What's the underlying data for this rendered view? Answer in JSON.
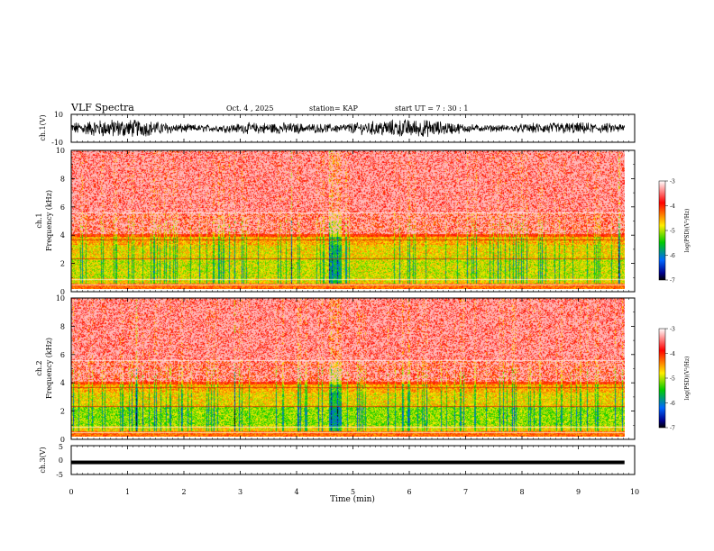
{
  "header": {
    "title": "VLF Spectra",
    "date": "Oct. 4  , 2025",
    "station": "station= KAP",
    "start": "start  UT  =   7 : 30 : 1"
  },
  "chart_data": [
    {
      "type": "line",
      "name": "ch1-waveform",
      "ylabel": "ch.1(V)",
      "ylim": [
        -10,
        10
      ],
      "y_ticks": [
        "10",
        "-10"
      ],
      "x_range_min": [
        0,
        10
      ],
      "data_extent_min": 9.82,
      "description_values": "dense oscillation, amplitude roughly -6 to +6 V"
    },
    {
      "type": "heatmap",
      "name": "ch1-spectrogram",
      "ylabel": "ch.1\nFrequency (kHz)",
      "ylabel_lines": [
        "ch.1",
        "Frequency (kHz)"
      ],
      "y_ticks": [
        "0",
        "2",
        "4",
        "6",
        "8",
        "10"
      ],
      "ylim": [
        0,
        10
      ],
      "x_range_min": [
        0,
        10
      ],
      "colorbar": {
        "label": "log(PSD)(V²/Hz)",
        "ticks": [
          "-3",
          "-4",
          "-5",
          "-6",
          "-7"
        ],
        "range": [
          -7,
          -3
        ]
      }
    },
    {
      "type": "heatmap",
      "name": "ch2-spectrogram",
      "ylabel_lines": [
        "ch.2",
        "Frequency (kHz)"
      ],
      "y_ticks": [
        "0",
        "2",
        "4",
        "6",
        "8",
        "10"
      ],
      "ylim": [
        0,
        10
      ],
      "x_range_min": [
        0,
        10
      ],
      "colorbar": {
        "label": "log(PSD)(V²/Hz)",
        "ticks": [
          "-3",
          "-4",
          "-5",
          "-6",
          "-7"
        ],
        "range": [
          -7,
          -3
        ]
      }
    },
    {
      "type": "line",
      "name": "ch3-waveform",
      "ylabel": "ch.3(V)",
      "ylim": [
        -5,
        5
      ],
      "y_ticks": [
        "5",
        "0",
        "-5"
      ],
      "level_v": -0.8,
      "x_range_min": [
        0,
        10
      ]
    }
  ],
  "x_axis": {
    "label": "Time  (min)",
    "ticks": [
      "0",
      "1",
      "2",
      "3",
      "4",
      "5",
      "6",
      "7",
      "8",
      "9",
      "10"
    ],
    "range": [
      0,
      10
    ]
  },
  "colors": {
    "palette": [
      "#ffffff",
      "#ff0000",
      "#ffee00",
      "#00cc00",
      "#0066ff",
      "#00008b",
      "#000000"
    ]
  }
}
